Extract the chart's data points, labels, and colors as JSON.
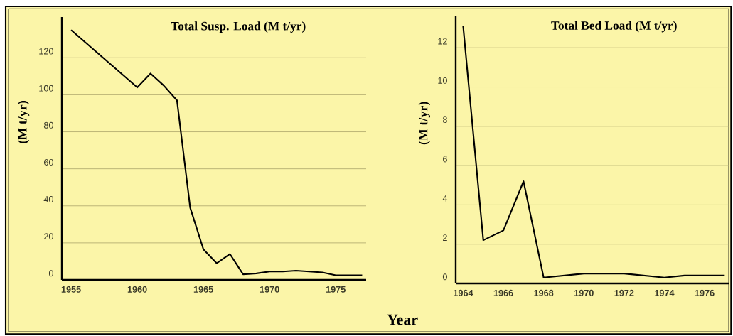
{
  "chart_data": [
    {
      "type": "line",
      "title": "Total Susp. Load (M t/yr)",
      "ylabel": "(M t/yr)",
      "x": [
        1955,
        1960,
        1961,
        1962,
        1963,
        1964,
        1965,
        1966,
        1967,
        1968,
        1969,
        1970,
        1971,
        1972,
        1973,
        1974,
        1975,
        1976,
        1977
      ],
      "values": [
        135,
        104,
        111.5,
        105,
        97,
        39,
        16.5,
        9,
        14,
        3,
        3.5,
        4.5,
        4.5,
        5,
        4.5,
        4,
        2.5,
        2.5,
        2.5
      ],
      "color": "#000000",
      "xlim": [
        1954.3,
        1977.3
      ],
      "ylim": [
        0,
        142
      ],
      "xticks": [
        1955,
        1960,
        1965,
        1970,
        1975
      ],
      "yticks": [
        0,
        20,
        40,
        60,
        80,
        100,
        120
      ],
      "grid": "y"
    },
    {
      "type": "line",
      "title": "Total Bed Load (M t/yr)",
      "ylabel": "(M t/yr)",
      "xlabel": "Year",
      "x": [
        1964,
        1965,
        1966,
        1967,
        1968,
        1970,
        1972,
        1974,
        1975,
        1977
      ],
      "values": [
        13.1,
        2.2,
        2.7,
        5.2,
        0.3,
        0.5,
        0.5,
        0.3,
        0.4,
        0.4
      ],
      "color": "#000000",
      "xlim": [
        1963.63,
        1977.2
      ],
      "ylim": [
        0,
        13.6
      ],
      "xticks": [
        1964,
        1966,
        1968,
        1970,
        1972,
        1974,
        1976
      ],
      "yticks": [
        0,
        2,
        4,
        6,
        8,
        10,
        12
      ],
      "grid": "y"
    }
  ]
}
